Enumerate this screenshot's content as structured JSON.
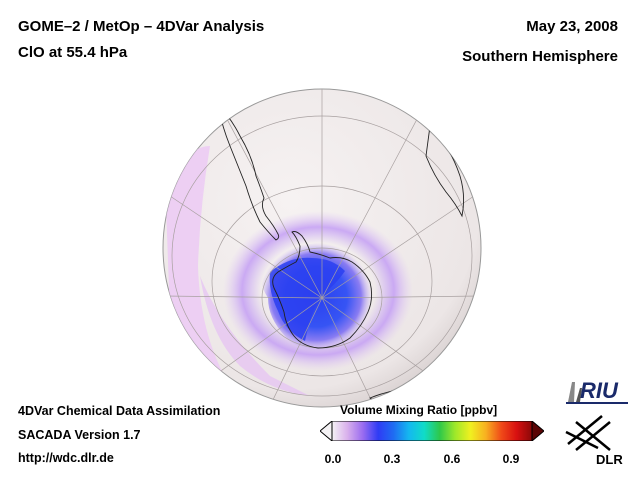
{
  "header": {
    "title_line_1": "GOME–2 / MetOp – 4DVar Analysis",
    "title_line_2": "ClO at 55.4 hPa",
    "date": "May 23, 2008",
    "hemisphere": "Southern Hemisphere"
  },
  "footer": {
    "line_1": "4DVar Chemical Data Assimilation",
    "line_2": "SACADA Version 1.7",
    "line_3": "http://wdc.dlr.de"
  },
  "colorbar": {
    "title": "Volume Mixing Ratio [ppbv]",
    "ticks": [
      "0.0",
      "0.3",
      "0.6",
      "0.9"
    ],
    "stops": [
      "#f4f2f4",
      "#d9b0ec",
      "#9a6cf0",
      "#2f3cf5",
      "#1f6cf2",
      "#14b8f0",
      "#10dcc8",
      "#2ec84a",
      "#9ee82a",
      "#f0f020",
      "#f8b020",
      "#f04a18",
      "#d81010",
      "#8a0808"
    ]
  },
  "logos": {
    "riu": "RIU",
    "dlr": "DLR"
  },
  "map_colors": {
    "ocean_disk": "#f0ebeb",
    "background_glow": "#eeccf4",
    "vortex_core": "#2a40f0",
    "vortex_ring": "#b89af4"
  }
}
